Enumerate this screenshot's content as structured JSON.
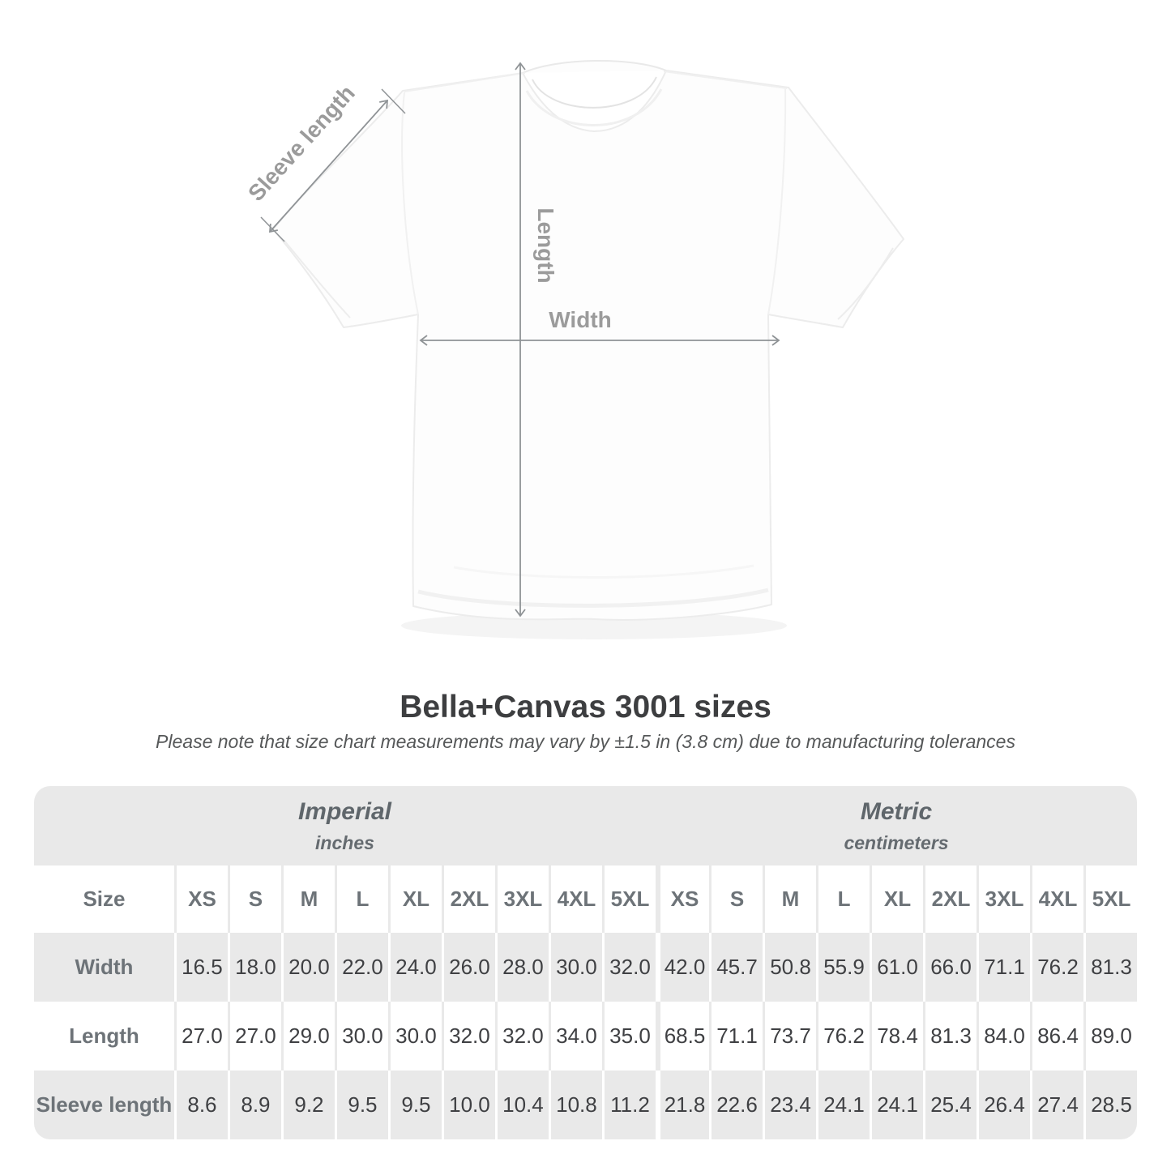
{
  "title": "Bella+Canvas 3001 sizes",
  "subtitle": "Please note that size chart measurements may vary by ±1.5 in (3.8 cm) due to manufacturing tolerances",
  "diagram": {
    "labels": {
      "sleeve": "Sleeve length",
      "length": "Length",
      "width": "Width"
    }
  },
  "table": {
    "size_header": "Size",
    "sections": [
      {
        "label": "Imperial",
        "unit": "inches"
      },
      {
        "label": "Metric",
        "unit": "centimeters"
      }
    ],
    "sizes": [
      "XS",
      "S",
      "M",
      "L",
      "XL",
      "2XL",
      "3XL",
      "4XL",
      "5XL"
    ],
    "rows": [
      {
        "label": "Width",
        "imperial": [
          "16.5",
          "18.0",
          "20.0",
          "22.0",
          "24.0",
          "26.0",
          "28.0",
          "30.0",
          "32.0"
        ],
        "metric": [
          "42.0",
          "45.7",
          "50.8",
          "55.9",
          "61.0",
          "66.0",
          "71.1",
          "76.2",
          "81.3"
        ]
      },
      {
        "label": "Length",
        "imperial": [
          "27.0",
          "27.0",
          "29.0",
          "30.0",
          "30.0",
          "32.0",
          "32.0",
          "34.0",
          "35.0"
        ],
        "metric": [
          "68.5",
          "71.1",
          "73.7",
          "76.2",
          "78.4",
          "81.3",
          "84.0",
          "86.4",
          "89.0"
        ]
      },
      {
        "label": "Sleeve length",
        "imperial": [
          "8.6",
          "8.9",
          "9.2",
          "9.5",
          "9.5",
          "10.0",
          "10.4",
          "10.8",
          "11.2"
        ],
        "metric": [
          "21.8",
          "22.6",
          "23.4",
          "24.1",
          "24.1",
          "25.4",
          "26.4",
          "27.4",
          "28.5"
        ]
      }
    ]
  },
  "chart_data": {
    "type": "table",
    "title": "Bella+Canvas 3001 sizes",
    "categories": [
      "XS",
      "S",
      "M",
      "L",
      "XL",
      "2XL",
      "3XL",
      "4XL",
      "5XL"
    ],
    "series": [
      {
        "name": "Width (inches)",
        "values": [
          16.5,
          18.0,
          20.0,
          22.0,
          24.0,
          26.0,
          28.0,
          30.0,
          32.0
        ]
      },
      {
        "name": "Length (inches)",
        "values": [
          27.0,
          27.0,
          29.0,
          30.0,
          30.0,
          32.0,
          32.0,
          34.0,
          35.0
        ]
      },
      {
        "name": "Sleeve length (inches)",
        "values": [
          8.6,
          8.9,
          9.2,
          9.5,
          9.5,
          10.0,
          10.4,
          10.8,
          11.2
        ]
      },
      {
        "name": "Width (cm)",
        "values": [
          42.0,
          45.7,
          50.8,
          55.9,
          61.0,
          66.0,
          71.1,
          76.2,
          81.3
        ]
      },
      {
        "name": "Length (cm)",
        "values": [
          68.5,
          71.1,
          73.7,
          76.2,
          78.4,
          81.3,
          84.0,
          86.4,
          89.0
        ]
      },
      {
        "name": "Sleeve length (cm)",
        "values": [
          21.8,
          22.6,
          23.4,
          24.1,
          24.1,
          25.4,
          26.4,
          27.4,
          28.5
        ]
      }
    ]
  },
  "colors": {
    "stripe_gray": "#e9e9e9",
    "header_text": "#6d7378",
    "value_text": "#3f4043",
    "arrow_gray": "#8f9396",
    "diagram_label_gray": "#9b9b9b",
    "title_text": "#3d3e40"
  }
}
